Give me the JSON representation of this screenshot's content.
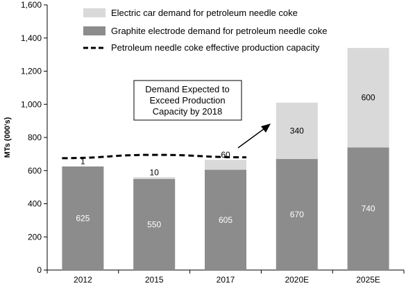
{
  "chart_data": {
    "type": "bar",
    "stacked": true,
    "categories": [
      "2012",
      "2015",
      "2017",
      "2020E",
      "2025E"
    ],
    "series": [
      {
        "name": "Graphite electrode demand for petroleum needle coke",
        "values": [
          625,
          550,
          605,
          670,
          740
        ],
        "color": "#8c8c8c"
      },
      {
        "name": "Electric car demand for petroleum needle coke",
        "values": [
          1,
          10,
          60,
          340,
          600
        ],
        "color": "#d9d9d9"
      }
    ],
    "line_series": {
      "name": "Petroleum needle coke effective production capacity",
      "x": [
        "2012",
        "2015",
        "2017"
      ],
      "values": [
        675,
        695,
        680
      ],
      "style": "dashed",
      "color": "#000000"
    },
    "ylabel": "MTs (000's)",
    "xlabel": "",
    "ylim": [
      0,
      1600
    ],
    "yticks": [
      "0",
      "200",
      "400",
      "600",
      "800",
      "1,000",
      "1,200",
      "1,400",
      "1,600"
    ],
    "grid": false,
    "legend_position": "top-center",
    "annotation": {
      "lines": [
        "Demand Expected to",
        "Exceed Production",
        "Capacity by 2018"
      ]
    }
  }
}
